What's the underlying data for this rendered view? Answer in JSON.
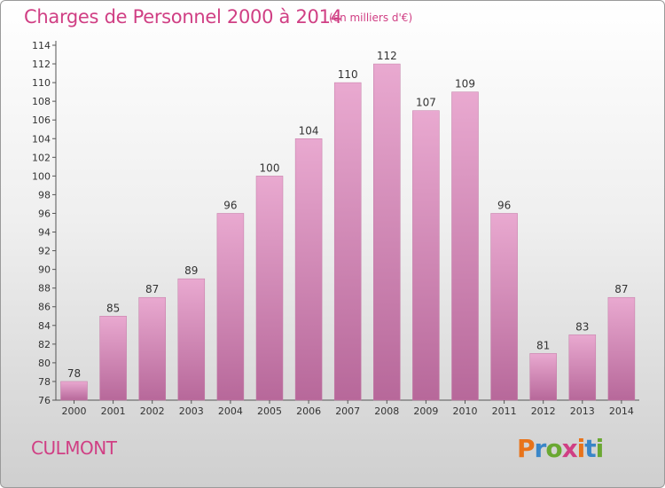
{
  "header": {
    "title": "Charges de Personnel 2000 à 2014",
    "subtitle": "(en milliers d'€)"
  },
  "footer": {
    "town": "CULMONT",
    "logo_text": "Proxiti"
  },
  "colors": {
    "accent": "#d03f84",
    "bar_top": "#e9a9d0",
    "bar_bottom": "#b7689a",
    "logo": [
      "#e8731a",
      "#3a86c8",
      "#6aa832",
      "#d03f84",
      "#e8731a",
      "#3a86c8",
      "#6aa832"
    ]
  },
  "chart_data": {
    "type": "bar",
    "title": "Charges de Personnel 2000 à 2014",
    "subtitle": "(en milliers d'€)",
    "xlabel": "",
    "ylabel": "",
    "categories": [
      "2000",
      "2001",
      "2002",
      "2003",
      "2004",
      "2005",
      "2006",
      "2007",
      "2008",
      "2009",
      "2010",
      "2011",
      "2012",
      "2013",
      "2014"
    ],
    "values": [
      78,
      85,
      87,
      89,
      96,
      100,
      104,
      110,
      112,
      107,
      109,
      96,
      81,
      83,
      87
    ],
    "ylim": [
      76,
      114
    ],
    "yticks": [
      76,
      78,
      80,
      82,
      84,
      86,
      88,
      90,
      92,
      94,
      96,
      98,
      100,
      102,
      104,
      106,
      108,
      110,
      112,
      114
    ],
    "grid": false,
    "legend": "none"
  }
}
